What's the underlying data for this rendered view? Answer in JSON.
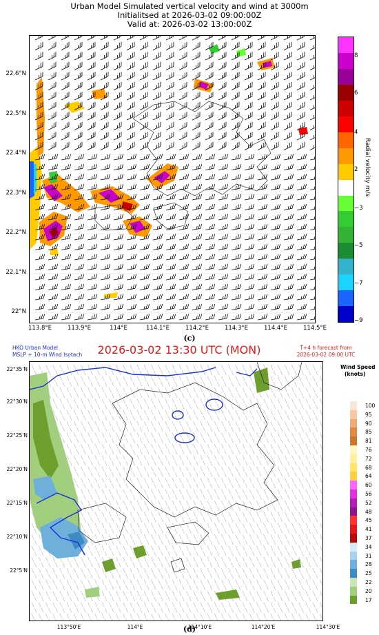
{
  "panel_c": {
    "title_line1": "Urban Model Simulated vertical velocity and wind at 3000m",
    "title_line2": "Initialitsed at 2026-03-02 09:00:00Z",
    "title_line3": "Valid at: 2026-03-02 13:00:00Z",
    "caption": "(c)",
    "x_ticks": [
      "113.8°E",
      "113.9°E",
      "114°E",
      "114.1°E",
      "114.2°E",
      "114.3°E",
      "114.4°E",
      "114.5°E"
    ],
    "y_ticks": [
      "22.6°N",
      "22.5°N",
      "22.4°N",
      "22.3°N",
      "22.2°N",
      "22.1°N",
      "22°N"
    ],
    "colorbar_label": "Radial velocity m/s",
    "colorbar_ticks": [
      "8",
      "6",
      "4",
      "2",
      "−3",
      "−5",
      "−7",
      "−9"
    ],
    "colorbar_colors": [
      "#0000cc",
      "#1a66ff",
      "#1ad4ff",
      "#33b3cc",
      "#1a8c33",
      "#33b333",
      "#33cc33",
      "#66ff33",
      "#ffffff",
      "#ffcc00",
      "#ff9900",
      "#ff6600",
      "#ff0000",
      "#cc0000",
      "#990000",
      "#990099",
      "#cc00cc",
      "#ff33ff"
    ]
  },
  "panel_d": {
    "header_left_line1": "HKO Urban Model",
    "header_left_line2": "MSLP + 10-m Wind Isotach",
    "header_center": "2026-03-02 13:30 UTC (MON)",
    "header_right_line1": "T+4 h forecast from",
    "header_right_line2": "2026-03-02 09:00 UTC",
    "caption": "(d)",
    "x_ticks": [
      "113°50'E",
      "114°E",
      "114°10'E",
      "114°20'E",
      "114°30'E"
    ],
    "y_ticks": [
      "22°35'N",
      "22°30'N",
      "22°25'N",
      "22°20'N",
      "22°15'N",
      "22°10'N",
      "22°5'N"
    ],
    "legend_title_line1": "Wind Speed",
    "legend_title_line2": "(knots)",
    "legend_levels": [
      "100",
      "95",
      "90",
      "85",
      "81",
      "76",
      "72",
      "68",
      "64",
      "60",
      "56",
      "52",
      "48",
      "45",
      "41",
      "37",
      "34",
      "31",
      "28",
      "25",
      "22",
      "20",
      "17"
    ],
    "legend_colors": [
      "#fbe6d6",
      "#f6c9a4",
      "#efab77",
      "#e18a48",
      "#c8782e",
      "#fff7c2",
      "#fff09a",
      "#ffe66b",
      "#ffd23e",
      "#ff66ff",
      "#e033e0",
      "#b01fb0",
      "#8a1a8a",
      "#ff3333",
      "#e01a1a",
      "#b30d0d",
      "#d6ecf8",
      "#a8d2ee",
      "#6fb0db",
      "#3d8cc4",
      "#c9e7b5",
      "#a2cf7e",
      "#6e9e2e"
    ]
  }
}
